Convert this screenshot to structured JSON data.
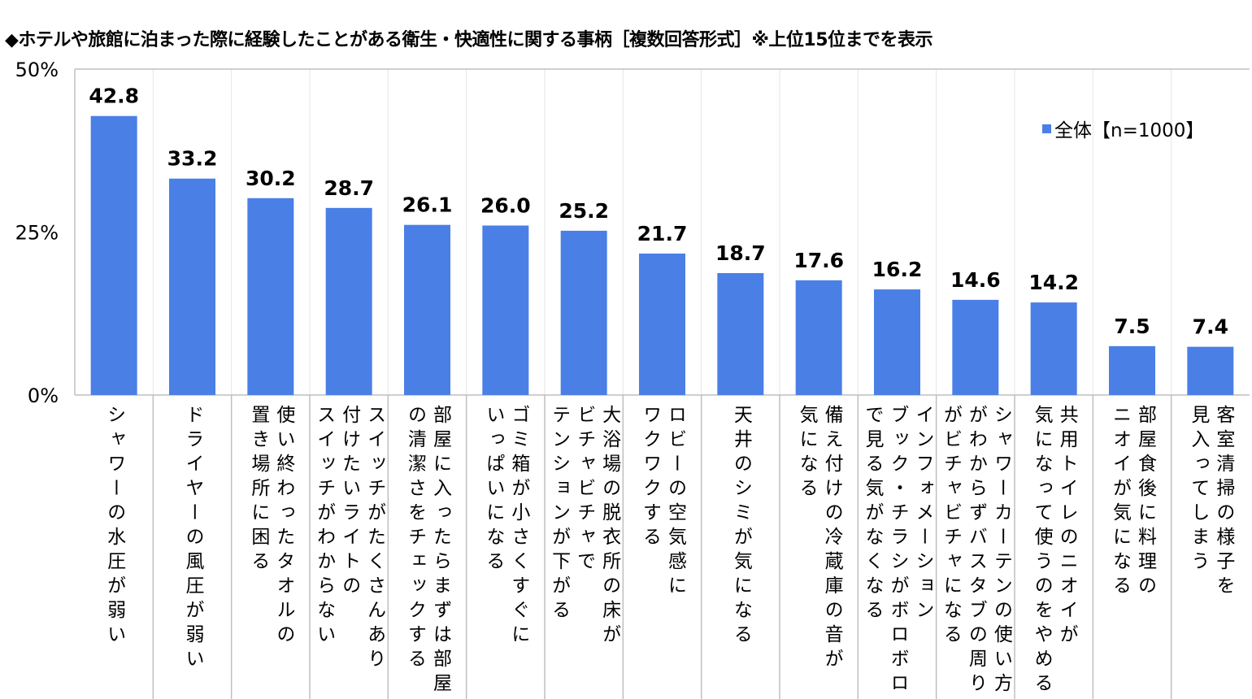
{
  "title": "◆ホテルや旅館に泊まった際に経験したことがある衛生・快適性に関する事柄［複数回答形式］※上位15位までを表示",
  "chart_data": {
    "type": "bar",
    "title": "◆ホテルや旅館に泊まった際に経験したことがある衛生・快適性に関する事柄［複数回答形式］※上位15位までを表示",
    "categories": [
      "シャワーの水圧が弱い",
      "ドライヤーの風圧が弱い",
      "使い終わったタオルの\n置き場所に困る",
      "スイッチがたくさんあり\n付けたいライトの\nスイッチがわからない",
      "部屋に入ったらまずは部屋\nの清潔さをチェックする",
      "ゴミ箱が小さくすぐに\nいっぱいになる",
      "大浴場の脱衣所の床が\nビチャビチャで\nテンションが下がる",
      "ロビーの空気感に\nワクワクする",
      "天井のシミが気になる",
      "備え付けの冷蔵庫の音が\n気になる",
      "インフォメーション\nブック・チラシがボロボロ\nで見る気がなくなる",
      "シャワーカーテンの使い方\nがわからずバスタブの周り\nがビチャビチャになる",
      "共用トイレのニオイが\n気になって使うのをやめる",
      "部屋食後に料理の\nニオイが気になる",
      "客室清掃の様子を\n見入ってしまう"
    ],
    "series": [
      {
        "name": "全体【n=1000】",
        "values": [
          42.8,
          33.2,
          30.2,
          28.7,
          26.1,
          26.0,
          25.2,
          21.7,
          18.7,
          17.6,
          16.2,
          14.6,
          14.2,
          7.5,
          7.4
        ],
        "color": "#4a7fe6"
      }
    ],
    "data_labels": [
      "42.8",
      "33.2",
      "30.2",
      "28.7",
      "26.1",
      "26.0",
      "25.2",
      "21.7",
      "18.7",
      "17.6",
      "16.2",
      "14.6",
      "14.2",
      "7.5",
      "7.4"
    ],
    "yticks": [
      "0%",
      "25%",
      "50%"
    ],
    "ytick_values": [
      0,
      25,
      50
    ],
    "ylim": [
      0,
      50
    ],
    "grid": "vertical category separators",
    "legend": {
      "label": "全体【n=1000】",
      "placement": "top-right"
    }
  }
}
